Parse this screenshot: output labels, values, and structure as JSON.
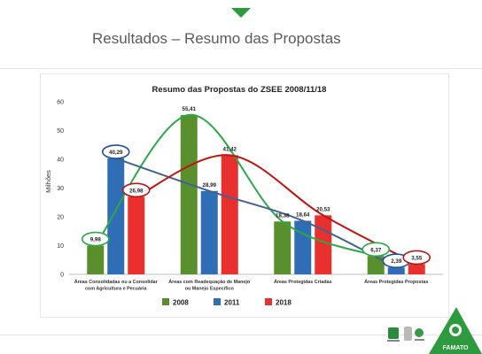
{
  "slide": {
    "title": "Resultados – Resumo das Propostas",
    "accent_color": "#2e9a3e",
    "marker_icon": "triangle-down-icon"
  },
  "footer": {
    "logo": "famato-logo",
    "logo_text": "FAMATO",
    "sponsor_icons": [
      "sponsor-logo",
      "sponsor-logo",
      "sponsor-logo"
    ]
  },
  "chart_data": {
    "type": "bar",
    "title": "Resumo das Propostas do ZSEE 2008/11/18",
    "ylabel": "Milhões",
    "xlabel": "",
    "ylim": [
      0,
      60
    ],
    "yticks": [
      0,
      10,
      20,
      30,
      40,
      50,
      60
    ],
    "grid": false,
    "legend_position": "bottom",
    "categories": [
      [
        "Áreas Consolidadas ou a Consolidar",
        "com Agricultura e Pecuária"
      ],
      [
        "Áreas com Readequação de Manejo",
        "ou Manejo Específico"
      ],
      [
        "Áreas Protegidas Criadas"
      ],
      [
        "Áreas Protegidas Propostas"
      ]
    ],
    "series": [
      {
        "name": "2008",
        "color": "#5a8f2e",
        "values": [
          9.98,
          55.41,
          18.38,
          6.37
        ],
        "labels": [
          "9,98",
          "55,41",
          "18,38",
          "6,37"
        ]
      },
      {
        "name": "2011",
        "color": "#2f6db5",
        "values": [
          40.29,
          28.99,
          18.64,
          2.39
        ],
        "labels": [
          "40,29",
          "28,99",
          "18,64",
          "2,39"
        ]
      },
      {
        "name": "2018",
        "color": "#e8312f",
        "values": [
          26.98,
          41.42,
          20.53,
          3.55
        ],
        "labels": [
          "26,98",
          "41,42",
          "20,53",
          "3,55"
        ]
      }
    ],
    "trendlines": [
      {
        "series": "2008",
        "color": "#2ba84a"
      },
      {
        "series": "2011",
        "color": "#44628f"
      },
      {
        "series": "2018",
        "color": "#c0140f"
      }
    ],
    "circled_labels": [
      {
        "series": "2008",
        "category": 0,
        "color": "#2ba84a"
      },
      {
        "series": "2008",
        "category": 3,
        "color": "#2ba84a"
      },
      {
        "series": "2011",
        "category": 0,
        "color": "#1f4f9a"
      },
      {
        "series": "2011",
        "category": 3,
        "color": "#1f4f9a"
      },
      {
        "series": "2018",
        "category": 0,
        "color": "#b3171a"
      },
      {
        "series": "2018",
        "category": 3,
        "color": "#b3171a"
      }
    ]
  }
}
